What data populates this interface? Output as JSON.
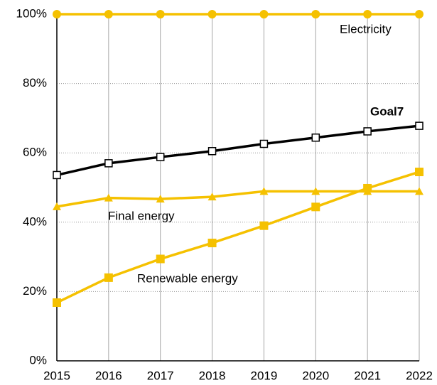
{
  "chart_data": {
    "type": "line",
    "categories": [
      "2015",
      "2016",
      "2017",
      "2018",
      "2019",
      "2020",
      "2021",
      "2022"
    ],
    "series": [
      {
        "name": "Electricity",
        "color": "#f5c100",
        "marker": "circle",
        "values": [
          100,
          100,
          100,
          100,
          100,
          100,
          100,
          100
        ]
      },
      {
        "name": "Goal7",
        "color": "#000000",
        "marker": "open-square",
        "values": [
          53.6,
          57,
          58.8,
          60.5,
          62.6,
          64.4,
          66.2,
          67.8
        ]
      },
      {
        "name": "Final energy",
        "color": "#f5c100",
        "marker": "triangle",
        "values": [
          44.5,
          47,
          46.7,
          47.3,
          48.9,
          48.9,
          48.9,
          48.9
        ]
      },
      {
        "name": "Renewable energy",
        "color": "#f5c100",
        "marker": "square",
        "values": [
          16.8,
          24,
          29.4,
          34,
          39,
          44.4,
          49.8,
          54.5
        ]
      }
    ],
    "ylim": [
      0,
      100
    ],
    "yticks": [
      {
        "value": 0,
        "label": "0%"
      },
      {
        "value": 20,
        "label": "20%"
      },
      {
        "value": 40,
        "label": "40%"
      },
      {
        "value": 60,
        "label": "60%"
      },
      {
        "value": 80,
        "label": "80%"
      },
      {
        "value": 100,
        "label": "100%"
      }
    ],
    "grid": true
  }
}
